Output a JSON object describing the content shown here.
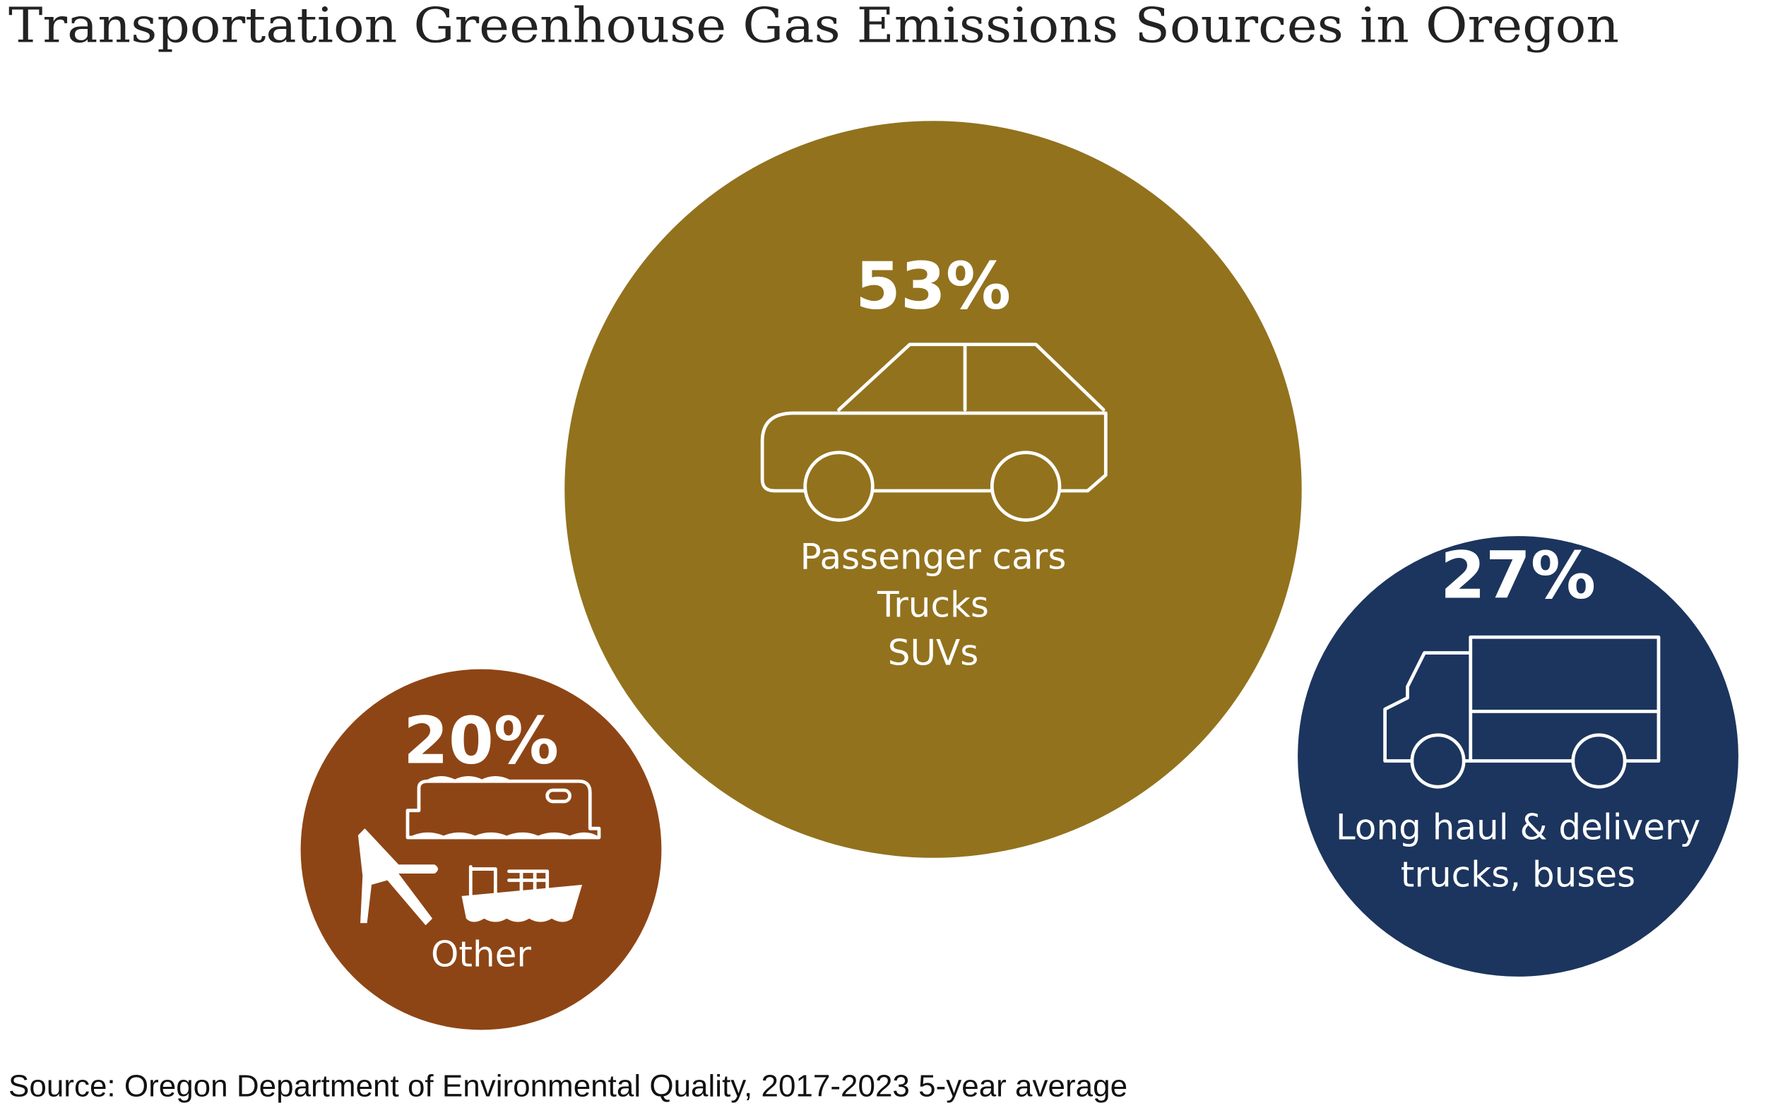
{
  "chart_data": {
    "type": "bubble",
    "title": "Transportation Greenhouse Gas Emissions Sources in Oregon",
    "source": "Source: Oregon Department of Environmental Quality, 2017-2023 5-year average",
    "categories": [
      [
        "Passenger cars",
        "Trucks",
        "SUVs"
      ],
      [
        "Long haul & delivery",
        "trucks, buses"
      ],
      [
        "Other"
      ]
    ],
    "values": [
      53,
      27,
      20
    ],
    "value_labels": [
      "53%",
      "27%",
      "20%"
    ],
    "colors": [
      "#92721d",
      "#1c355e",
      "#8e4515"
    ]
  }
}
